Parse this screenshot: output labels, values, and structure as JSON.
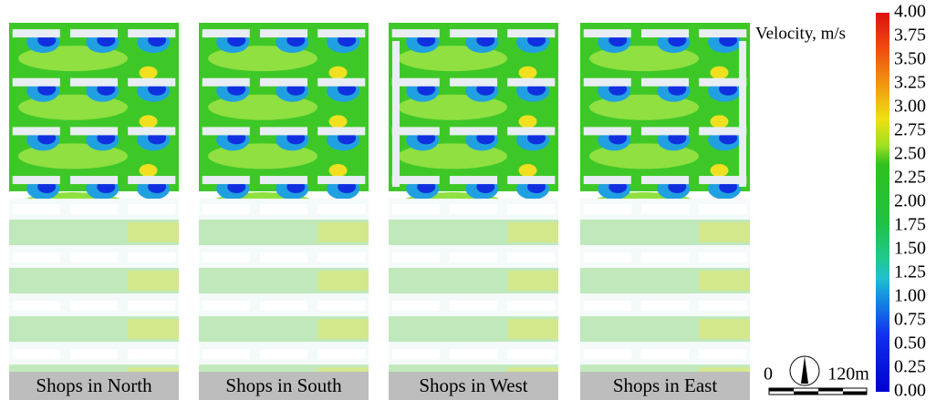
{
  "panels": [
    {
      "label": "Shops in North"
    },
    {
      "label": "Shops in South"
    },
    {
      "label": "Shops in West"
    },
    {
      "label": "Shops in East"
    }
  ],
  "colorbar": {
    "title": "Velocity, m/s",
    "lim": [
      0,
      4
    ],
    "ticks": [
      {
        "value": 4,
        "label": "4.00"
      },
      {
        "value": 3.75,
        "label": "3.75"
      },
      {
        "value": 3.5,
        "label": "3.50"
      },
      {
        "value": 3.25,
        "label": "3.25"
      },
      {
        "value": 3,
        "label": "3.00"
      },
      {
        "value": 2.75,
        "label": "2.75"
      },
      {
        "value": 2.5,
        "label": "2.50"
      },
      {
        "value": 2.25,
        "label": "2.25"
      },
      {
        "value": 2,
        "label": "2.00"
      },
      {
        "value": 1.75,
        "label": "1.75"
      },
      {
        "value": 1.5,
        "label": "1.50"
      },
      {
        "value": 1.25,
        "label": "1.25"
      },
      {
        "value": 1,
        "label": "1.00"
      },
      {
        "value": 0.75,
        "label": "0.75"
      },
      {
        "value": 0.5,
        "label": "0.50"
      },
      {
        "value": 0.25,
        "label": "0.25"
      },
      {
        "value": 0,
        "label": "0.00"
      }
    ]
  },
  "scale_bar": {
    "start": "0",
    "end": "120m"
  }
}
